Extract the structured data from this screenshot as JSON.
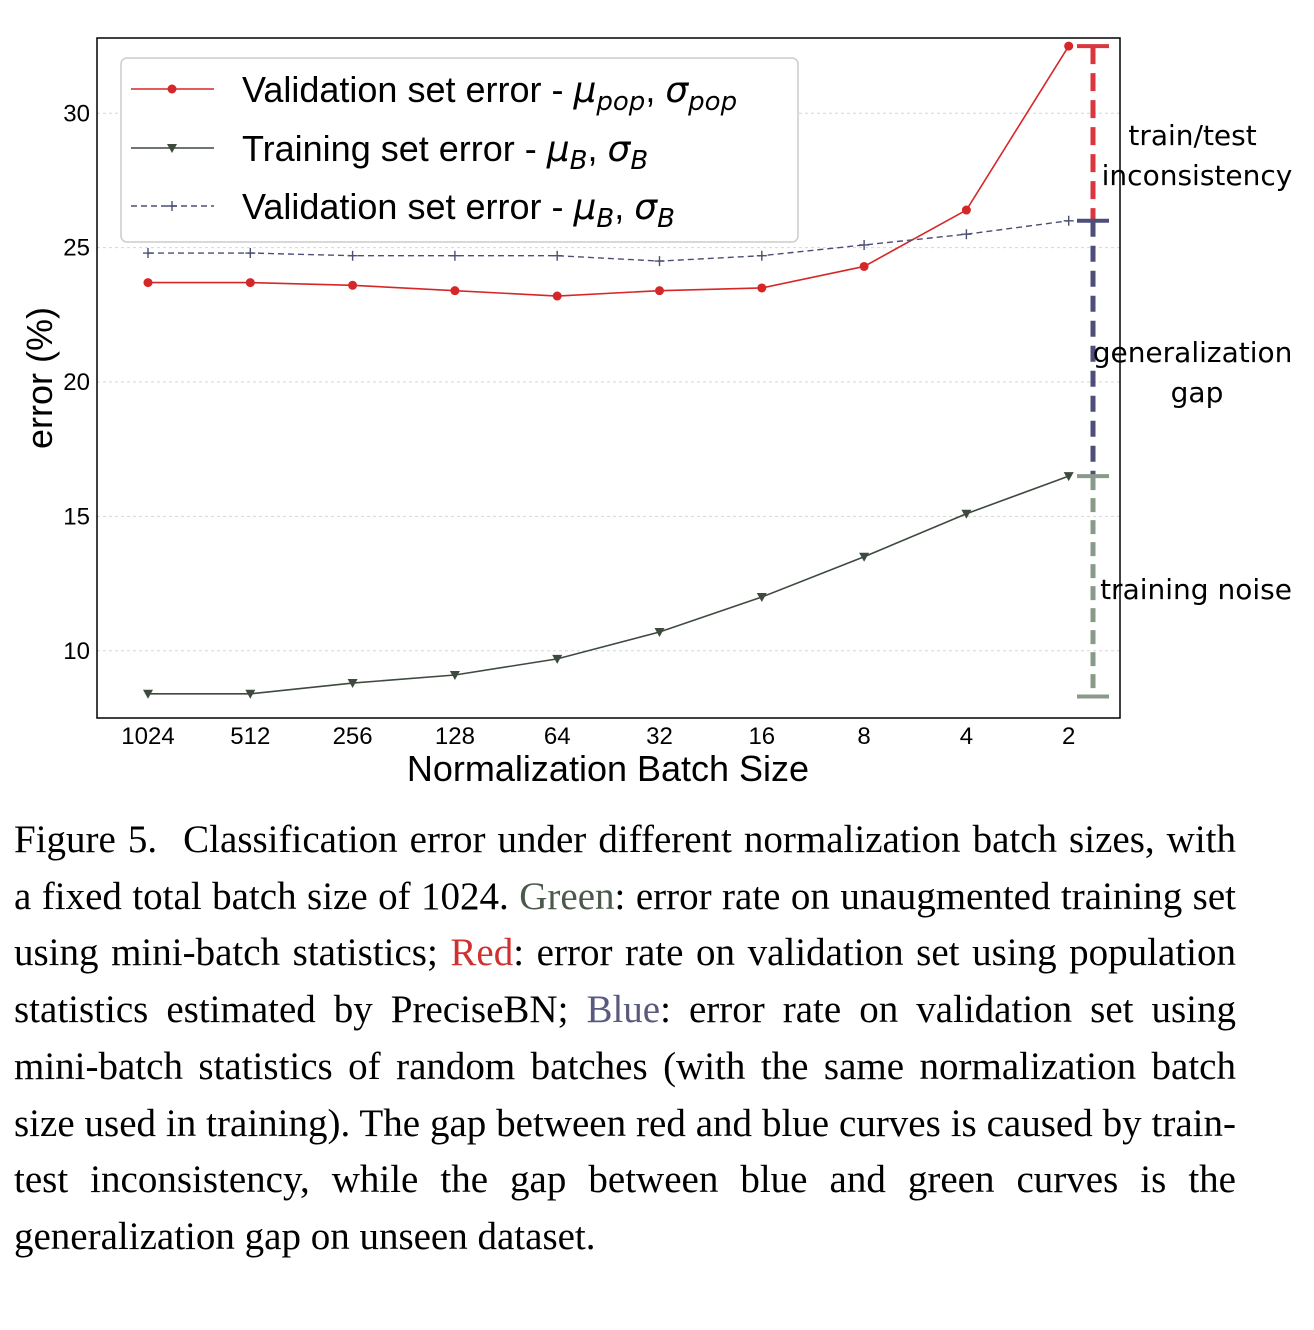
{
  "colors": {
    "red": "#d62728",
    "dark": "#3e4a3e",
    "blue": "#4b4f73",
    "annot_red": "#d9363e",
    "annot_blue": "#4d4f7a",
    "annot_green": "#8a9a8a"
  },
  "chart_data": {
    "type": "line",
    "xlabel": "Normalization Batch Size",
    "ylabel": "error (%)",
    "categories": [
      "1024",
      "512",
      "256",
      "128",
      "64",
      "32",
      "16",
      "8",
      "4",
      "2"
    ],
    "yticks": [
      "10",
      "15",
      "20",
      "25",
      "30"
    ],
    "ylim": [
      7.5,
      32.8
    ],
    "grid": "horizontal dotted",
    "legend_placement": "top-left",
    "series": [
      {
        "legend": "Validation set error - ",
        "mu": "μ",
        "mu_sub": "pop",
        "sigma": "σ",
        "sigma_sub": "pop",
        "marker": "circle",
        "style": "solid",
        "values": [
          23.7,
          23.7,
          23.6,
          23.4,
          23.2,
          23.4,
          23.5,
          24.3,
          26.4,
          32.5
        ]
      },
      {
        "legend": "Training set error - ",
        "mu": "μ",
        "mu_sub": "B",
        "sigma": "σ",
        "sigma_sub": "B",
        "marker": "triangle-down",
        "style": "solid",
        "values": [
          8.4,
          8.4,
          8.8,
          9.1,
          9.7,
          10.7,
          12.0,
          13.5,
          15.1,
          16.5
        ]
      },
      {
        "legend": "Validation set error - ",
        "mu": "μ",
        "mu_sub": "B",
        "sigma": "σ",
        "sigma_sub": "B",
        "marker": "plus",
        "style": "dashed",
        "values": [
          24.8,
          24.8,
          24.7,
          24.7,
          24.7,
          24.5,
          24.7,
          25.1,
          25.5,
          26.0
        ]
      }
    ],
    "gap_bracket": {
      "levels": [
        32.5,
        26.0,
        16.5,
        8.3
      ],
      "annotations": [
        {
          "lines": [
            "train/test",
            "inconsistency"
          ]
        },
        {
          "lines": [
            "generalization",
            "gap"
          ]
        },
        {
          "lines": [
            "training noise"
          ]
        }
      ]
    }
  },
  "caption": {
    "label": "Figure 5.",
    "part1": "Classification error under different normalization batch sizes, with a fixed total batch size of 1024.",
    "green_word": "Green",
    "part2": ": error rate on unaugmented training set using mini-batch statistics;",
    "red_word": "Red",
    "part3": ": error rate on validation set using population statistics estimated by Pre­ciseBN;",
    "blue_word": "Blue",
    "part4": ": error rate on validation set using mini-batch statis­tics of random batches (with the same normalization batch size used in training). The gap between red and blue curves is caused by train-test inconsistency, while the gap between blue and green curves is the generalization gap on unseen dataset."
  }
}
